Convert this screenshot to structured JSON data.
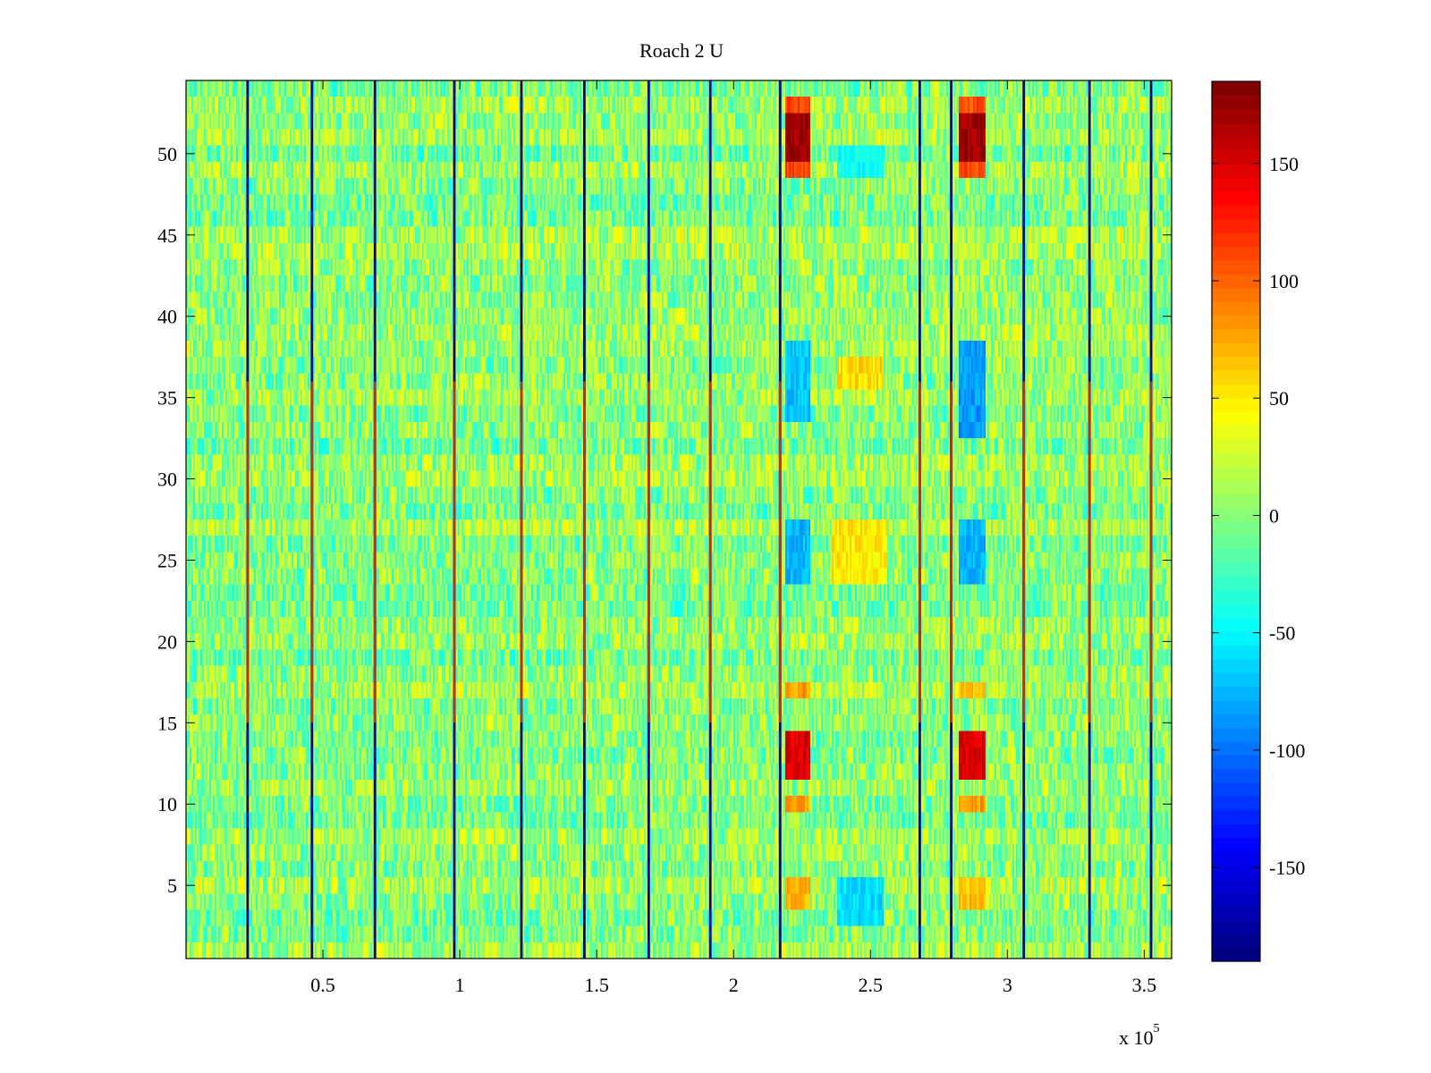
{
  "chart_data": {
    "type": "heatmap",
    "title": "Roach 2 U",
    "xlabel": "",
    "ylabel": "",
    "x_multiplier_label": "x 10",
    "x_multiplier_exponent": "5",
    "xlim": [
      0,
      360000
    ],
    "ylim": [
      0.5,
      54.5
    ],
    "x_ticks": [
      {
        "value": 50000,
        "label": "0.5"
      },
      {
        "value": 100000,
        "label": "1"
      },
      {
        "value": 150000,
        "label": "1.5"
      },
      {
        "value": 200000,
        "label": "2"
      },
      {
        "value": 250000,
        "label": "2.5"
      },
      {
        "value": 300000,
        "label": "3"
      },
      {
        "value": 350000,
        "label": "3.5"
      }
    ],
    "y_ticks": [
      {
        "value": 5,
        "label": "5"
      },
      {
        "value": 10,
        "label": "10"
      },
      {
        "value": 15,
        "label": "15"
      },
      {
        "value": 20,
        "label": "20"
      },
      {
        "value": 25,
        "label": "25"
      },
      {
        "value": 30,
        "label": "30"
      },
      {
        "value": 35,
        "label": "35"
      },
      {
        "value": 40,
        "label": "40"
      },
      {
        "value": 45,
        "label": "45"
      },
      {
        "value": 50,
        "label": "50"
      }
    ],
    "colormap": "jet",
    "clim": [
      -190,
      185
    ],
    "colorbar_ticks": [
      {
        "value": 150,
        "label": "150"
      },
      {
        "value": 100,
        "label": "100"
      },
      {
        "value": 50,
        "label": "50"
      },
      {
        "value": 0,
        "label": "0"
      },
      {
        "value": -50,
        "label": "-50"
      },
      {
        "value": -100,
        "label": "-100"
      },
      {
        "value": -150,
        "label": "-150"
      }
    ],
    "background_value_range": [
      -40,
      40
    ],
    "vertical_stripes": [
      {
        "x": 22500,
        "value": -180,
        "hot_rows": [
          15,
          36
        ]
      },
      {
        "x": 46000,
        "value": -170,
        "hot_rows": [
          15,
          36
        ]
      },
      {
        "x": 69000,
        "value": -180,
        "hot_rows": [
          15,
          36
        ]
      },
      {
        "x": 98000,
        "value": -175,
        "hot_rows": [
          15,
          36
        ]
      },
      {
        "x": 122500,
        "value": -180,
        "hot_rows": [
          15,
          36
        ]
      },
      {
        "x": 145500,
        "value": -185,
        "hot_rows": [
          15,
          36
        ]
      },
      {
        "x": 169000,
        "value": -170,
        "hot_rows": [
          15,
          36
        ]
      },
      {
        "x": 191500,
        "value": -170,
        "hot_rows": [
          15,
          36
        ]
      },
      {
        "x": 217000,
        "value": -180,
        "hot_rows": [
          15,
          36
        ]
      },
      {
        "x": 268000,
        "value": -175,
        "hot_rows": [
          15,
          36
        ]
      },
      {
        "x": 279500,
        "value": -175,
        "hot_rows": [
          15,
          36
        ]
      },
      {
        "x": 306000,
        "value": -175,
        "hot_rows": [
          15,
          36
        ]
      },
      {
        "x": 330000,
        "value": -175,
        "hot_rows": [
          15,
          36
        ]
      },
      {
        "x": 352500,
        "value": -175,
        "hot_rows": [
          15,
          36
        ]
      }
    ],
    "blocks": [
      {
        "x0": 219000,
        "x1": 228000,
        "y0": 49.5,
        "y1": 52.5,
        "value": 170
      },
      {
        "x0": 219000,
        "x1": 228000,
        "y0": 52.5,
        "y1": 53.5,
        "value": 110
      },
      {
        "x0": 219000,
        "x1": 228000,
        "y0": 48.5,
        "y1": 49.5,
        "value": 110
      },
      {
        "x0": 282500,
        "x1": 292000,
        "y0": 49.5,
        "y1": 52.5,
        "value": 170
      },
      {
        "x0": 282500,
        "x1": 292000,
        "y0": 52.5,
        "y1": 53.5,
        "value": 110
      },
      {
        "x0": 282500,
        "x1": 292000,
        "y0": 48.5,
        "y1": 49.5,
        "value": 110
      },
      {
        "x0": 219000,
        "x1": 228000,
        "y0": 11.5,
        "y1": 14.5,
        "value": 150
      },
      {
        "x0": 219000,
        "x1": 228000,
        "y0": 9.5,
        "y1": 10.5,
        "value": 75
      },
      {
        "x0": 219000,
        "x1": 228000,
        "y0": 16.5,
        "y1": 17.5,
        "value": 80
      },
      {
        "x0": 219000,
        "x1": 228000,
        "y0": 3.5,
        "y1": 5.5,
        "value": 70
      },
      {
        "x0": 282500,
        "x1": 292000,
        "y0": 11.5,
        "y1": 14.5,
        "value": 150
      },
      {
        "x0": 282500,
        "x1": 292000,
        "y0": 9.5,
        "y1": 10.5,
        "value": 80
      },
      {
        "x0": 282500,
        "x1": 292000,
        "y0": 16.5,
        "y1": 17.5,
        "value": 65
      },
      {
        "x0": 282500,
        "x1": 292000,
        "y0": 3.5,
        "y1": 5.5,
        "value": 65
      },
      {
        "x0": 219000,
        "x1": 228000,
        "y0": 33.5,
        "y1": 38.5,
        "value": -70
      },
      {
        "x0": 219000,
        "x1": 228000,
        "y0": 23.5,
        "y1": 27.5,
        "value": -75
      },
      {
        "x0": 282500,
        "x1": 292000,
        "y0": 32.5,
        "y1": 38.5,
        "value": -85
      },
      {
        "x0": 282500,
        "x1": 292000,
        "y0": 23.5,
        "y1": 27.5,
        "value": -75
      },
      {
        "x0": 238000,
        "x1": 255000,
        "y0": 2.5,
        "y1": 5.5,
        "value": -60
      },
      {
        "x0": 238000,
        "x1": 255000,
        "y0": 48.5,
        "y1": 50.5,
        "value": -45
      },
      {
        "x0": 238000,
        "x1": 255000,
        "y0": 35.5,
        "y1": 37.5,
        "value": 55
      },
      {
        "x0": 236000,
        "x1": 256000,
        "y0": 23.5,
        "y1": 27.5,
        "value": 50
      }
    ]
  }
}
